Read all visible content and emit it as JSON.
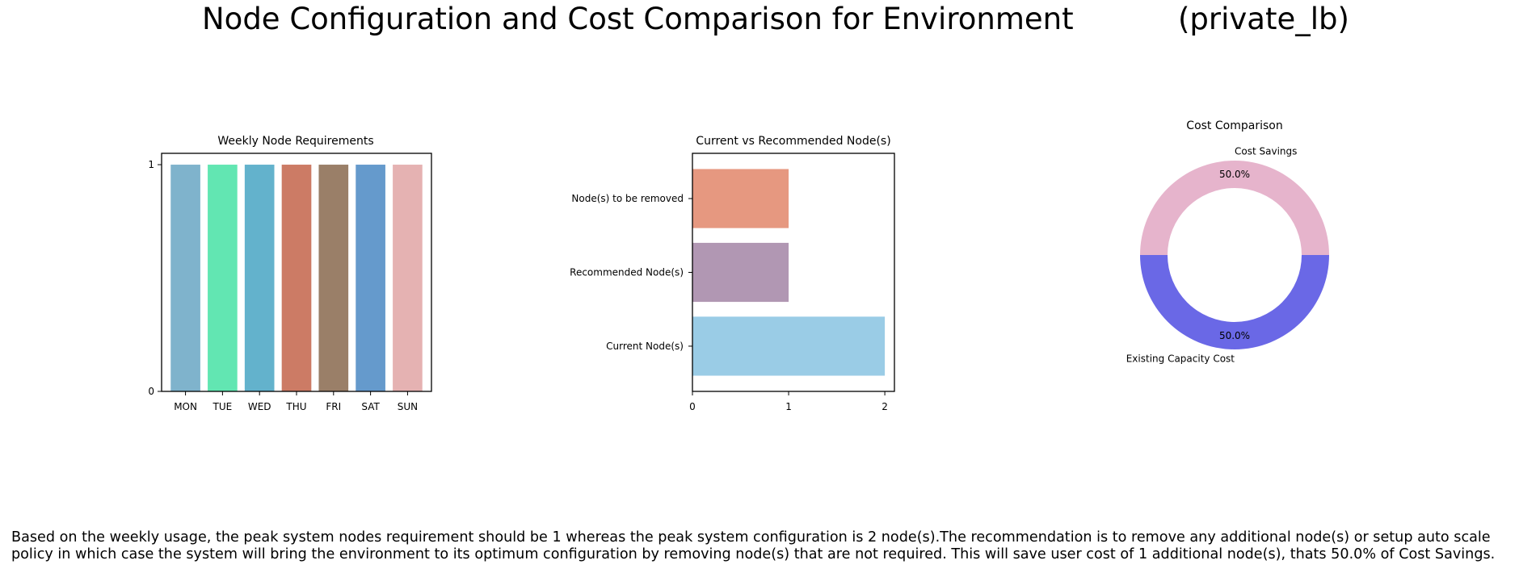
{
  "title": {
    "main": "Node Configuration and Cost Comparison for Environment",
    "environment": "(private_lb)"
  },
  "chart_data": [
    {
      "type": "bar",
      "title": "Weekly Node Requirements",
      "categories": [
        "MON",
        "TUE",
        "WED",
        "THU",
        "FRI",
        "SAT",
        "SUN"
      ],
      "values": [
        1,
        1,
        1,
        1,
        1,
        1,
        1
      ],
      "colors": [
        "#7fb3cc",
        "#62e6b2",
        "#63b2cc",
        "#cc7b65",
        "#9a7f68",
        "#659acc",
        "#e5b2b2"
      ],
      "yticks": [
        "0",
        "1"
      ],
      "ylim": [
        0,
        1.05
      ],
      "xlabel": "",
      "ylabel": ""
    },
    {
      "type": "barh",
      "title": "Current vs Recommended Node(s)",
      "categories": [
        "Current Node(s)",
        "Recommended Node(s)",
        "Node(s) to be removed"
      ],
      "values": [
        2,
        1,
        1
      ],
      "colors": [
        "#9acce6",
        "#b197b3",
        "#e69880"
      ],
      "xticks": [
        "0",
        "1",
        "2"
      ],
      "xlim": [
        0,
        2.1
      ]
    },
    {
      "type": "pie",
      "title": "Cost Comparison",
      "labels": [
        "Cost Savings",
        "Existing Capacity Cost"
      ],
      "values": [
        50.0,
        50.0
      ],
      "pct_labels": [
        "50.0%",
        "50.0%"
      ],
      "colors": [
        "#e6b4cc",
        "#6a68e6"
      ],
      "donut": true
    }
  ],
  "summary": {
    "line1": "Based on the weekly usage, the peak system nodes requirement should be 1 whereas the peak system configuration is 2 node(s).The recommendation is to remove any additional node(s) or setup auto scale",
    "line2": "policy in which case the system will bring the environment to its optimum configuration by removing node(s) that are not required. This will save user cost of 1 additional node(s), thats 50.0% of Cost Savings."
  }
}
